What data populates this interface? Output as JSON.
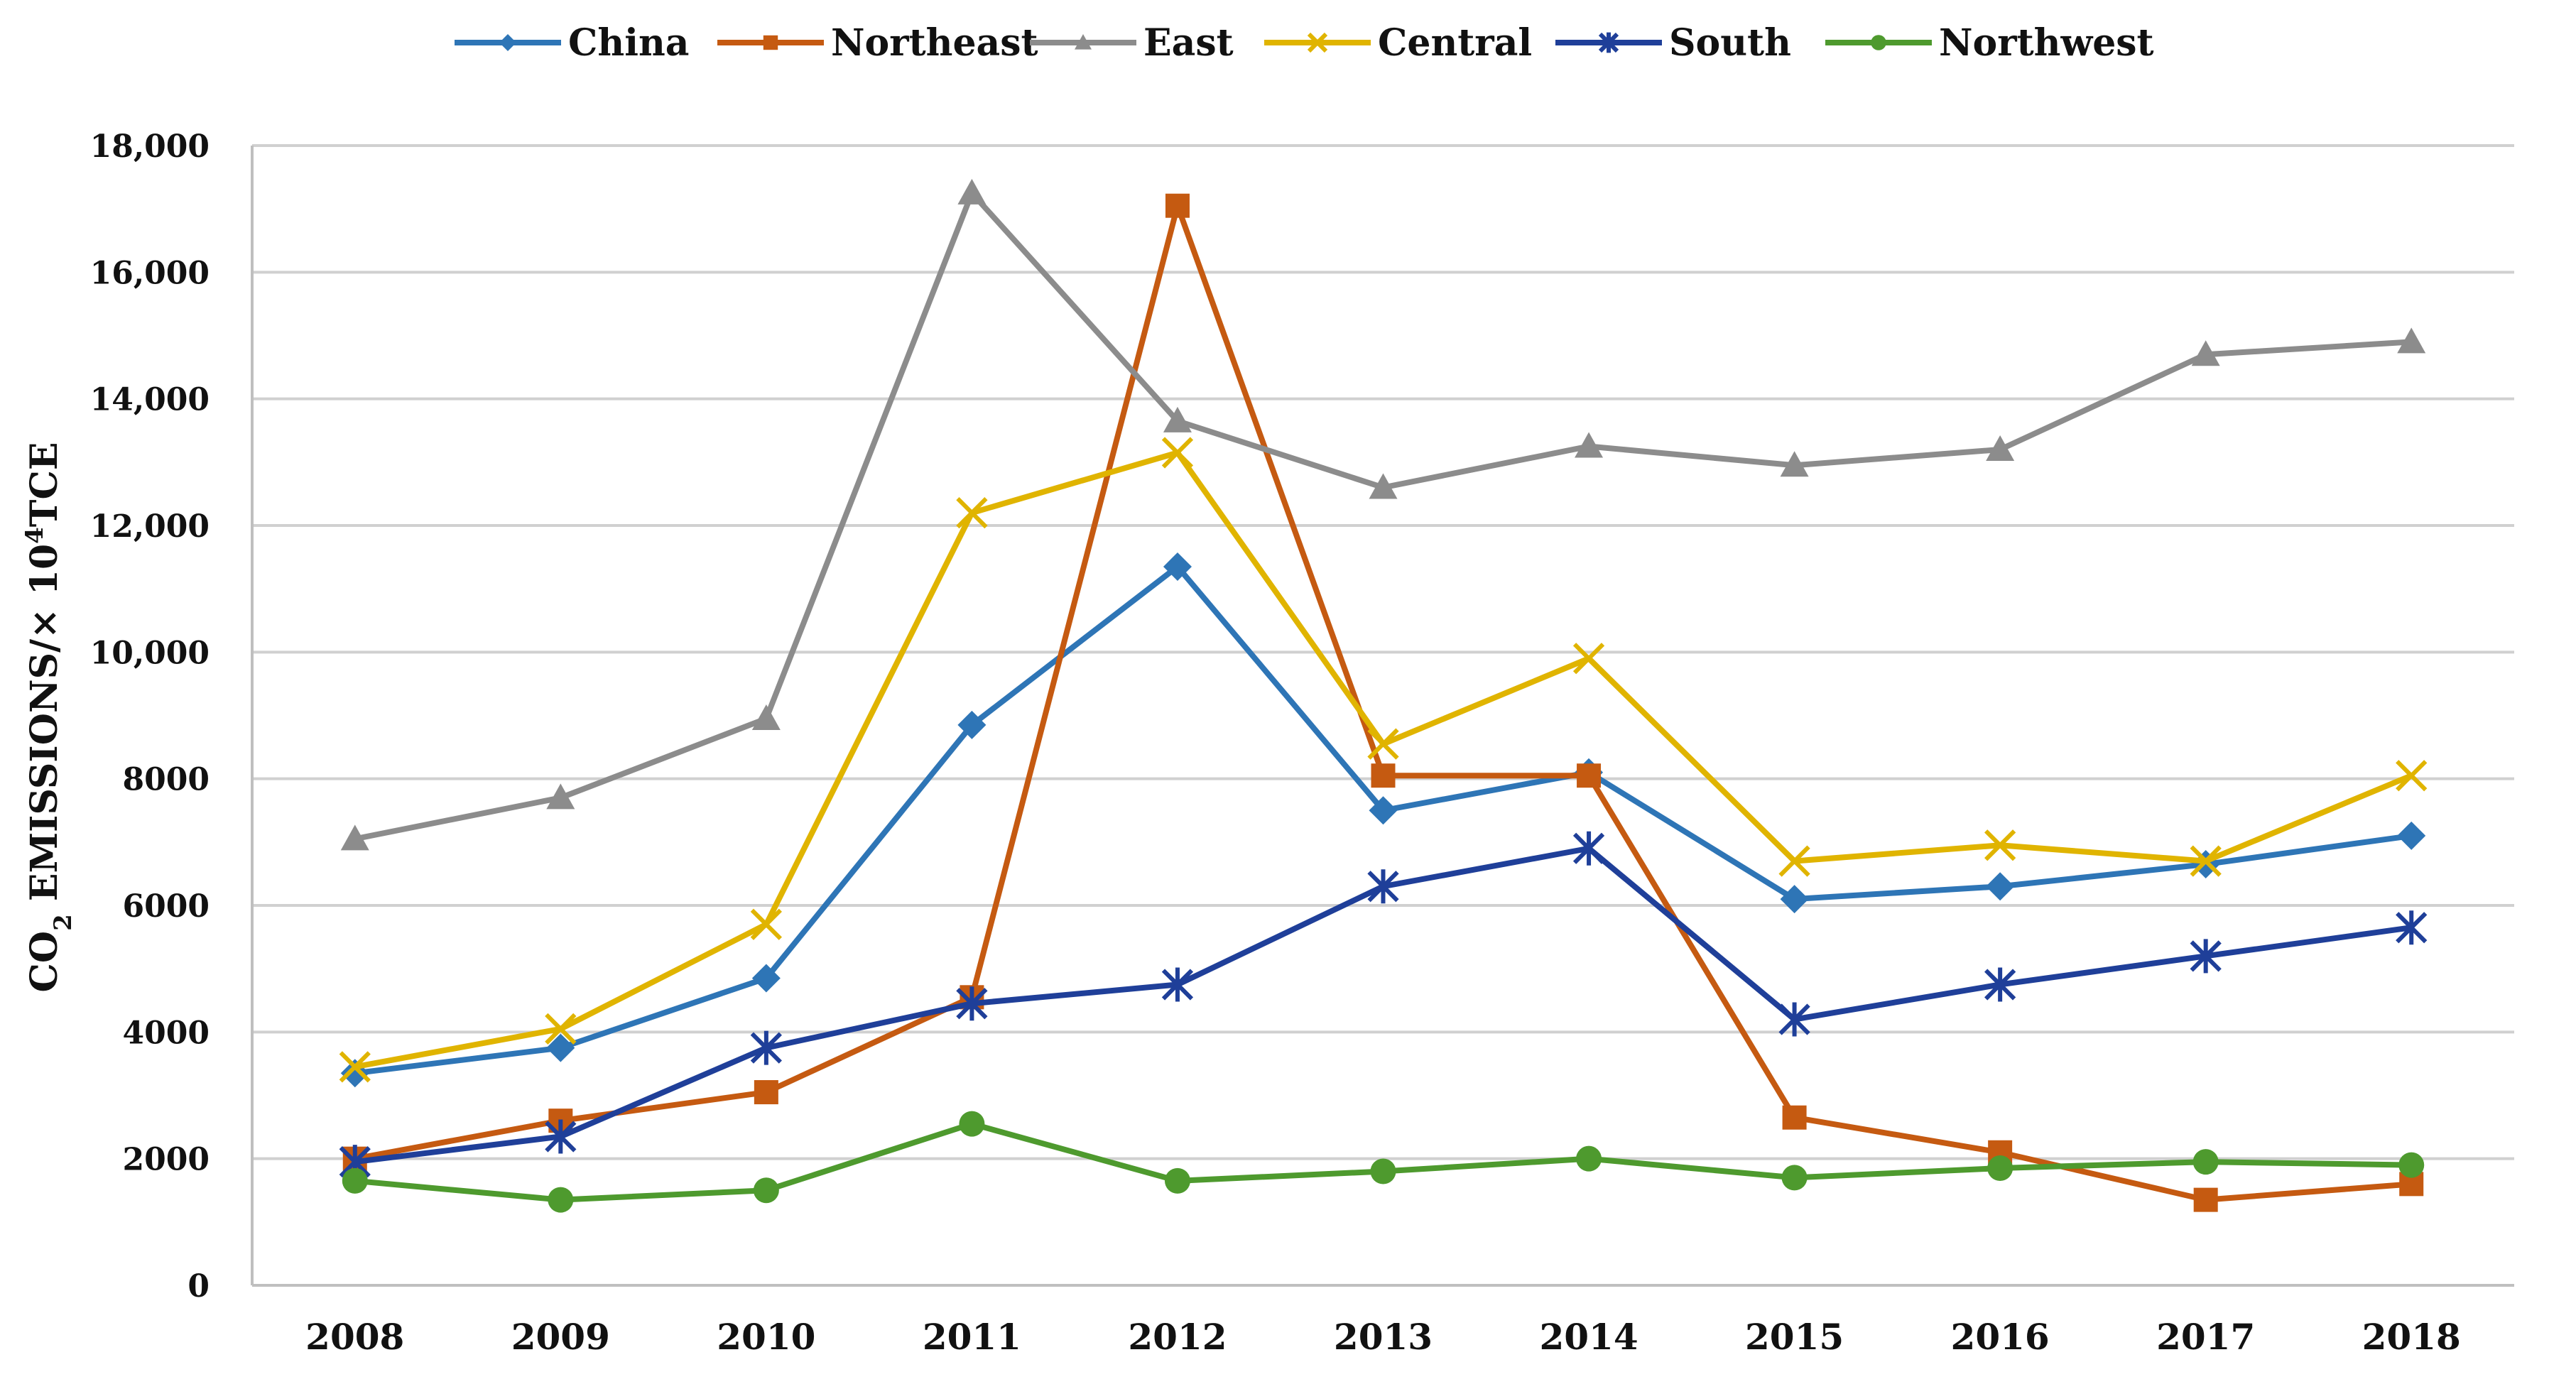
{
  "chart_data": {
    "type": "line",
    "title": "",
    "xlabel": "",
    "ylabel": "CO₂ EMISSIONS/× 10⁴TCE",
    "ylabel_parts": {
      "main": "CO",
      "sub": "2",
      "rest": " EMISSIONS/× 10",
      "sup": "4",
      "unit": "TCE"
    },
    "ylim": [
      0,
      18000
    ],
    "yticks": [
      0,
      2000,
      4000,
      6000,
      8000,
      10000,
      12000,
      14000,
      16000,
      18000
    ],
    "ytick_labels": [
      "0",
      "2000",
      "4000",
      "6000",
      "8000",
      "10,000",
      "12,000",
      "14,000",
      "16,000",
      "18,000"
    ],
    "categories": [
      "2008",
      "2009",
      "2010",
      "2011",
      "2012",
      "2013",
      "2014",
      "2015",
      "2016",
      "2017",
      "2018"
    ],
    "grid": true,
    "legend_position": "top",
    "series": [
      {
        "name": "China",
        "color": "#2E75B6",
        "marker": "diamond",
        "values": [
          3350,
          3750,
          4850,
          8850,
          11350,
          7500,
          8100,
          6100,
          6300,
          6650,
          7100
        ]
      },
      {
        "name": "Northeast",
        "color": "#C55A11",
        "marker": "square",
        "values": [
          2000,
          2600,
          3050,
          4550,
          17050,
          8050,
          8050,
          2650,
          2100,
          1350,
          1600
        ]
      },
      {
        "name": "East",
        "color": "#8C8C8C",
        "marker": "triangle",
        "values": [
          7050,
          7700,
          8950,
          17250,
          13650,
          12600,
          13250,
          12950,
          13200,
          14700,
          14900
        ]
      },
      {
        "name": "Central",
        "color": "#E0B400",
        "marker": "x",
        "values": [
          3450,
          4050,
          5700,
          12200,
          13150,
          8550,
          9900,
          6700,
          6950,
          6700,
          8050
        ]
      },
      {
        "name": "South",
        "color": "#1F3F99",
        "marker": "star",
        "values": [
          1950,
          2350,
          3750,
          4450,
          4750,
          6300,
          6900,
          4200,
          4750,
          5200,
          5650
        ]
      },
      {
        "name": "Northwest",
        "color": "#4E9A2E",
        "marker": "circle",
        "values": [
          1650,
          1350,
          1500,
          2550,
          1650,
          1800,
          2000,
          1700,
          1850,
          1950,
          1900
        ]
      }
    ]
  }
}
